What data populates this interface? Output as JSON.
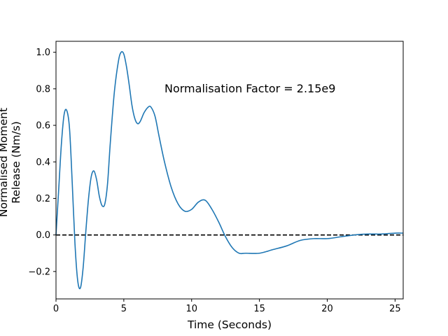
{
  "chart_data": {
    "type": "line",
    "title": "",
    "xlabel": "Time (Seconds)",
    "ylabel": "Normalised Moment Release (Nm/s)",
    "ylabel_lines": [
      "Normalised Moment",
      "Release (Nm/s)"
    ],
    "xlim": [
      0,
      25.6
    ],
    "ylim": [
      -0.35,
      1.06
    ],
    "xticks": [
      0,
      5,
      10,
      15,
      20,
      25
    ],
    "xtick_labels": [
      "0",
      "5",
      "10",
      "15",
      "20",
      "25"
    ],
    "yticks": [
      -0.2,
      0.0,
      0.2,
      0.4,
      0.6,
      0.8,
      1.0
    ],
    "ytick_labels": [
      "−0.2",
      "0.0",
      "0.2",
      "0.4",
      "0.6",
      "0.8",
      "1.0"
    ],
    "grid": false,
    "legend": "none",
    "annotation": {
      "text": "Normalisation Factor = 2.15e9",
      "x": 8.0,
      "y": 0.8
    },
    "reference_line": {
      "y": 0.0,
      "style": "dashed",
      "color": "#000000"
    },
    "series": [
      {
        "color": "#1f77b4",
        "x": [
          0,
          0.2,
          0.4,
          0.6,
          0.8,
          1.0,
          1.2,
          1.4,
          1.6,
          1.8,
          2.0,
          2.2,
          2.4,
          2.6,
          2.8,
          3.0,
          3.2,
          3.4,
          3.6,
          3.8,
          4.0,
          4.3,
          4.6,
          4.8,
          5.0,
          5.2,
          5.4,
          5.6,
          5.8,
          6.0,
          6.2,
          6.5,
          6.8,
          7.0,
          7.3,
          7.6,
          8.0,
          8.5,
          9.0,
          9.5,
          10.0,
          10.5,
          11.0,
          11.5,
          12.0,
          12.5,
          13.0,
          13.5,
          14.0,
          15.0,
          16.0,
          17.0,
          18.0,
          19.0,
          20.0,
          21.0,
          22.0,
          23.0,
          24.0,
          25.0,
          25.6
        ],
        "y": [
          0.0,
          0.25,
          0.5,
          0.66,
          0.68,
          0.58,
          0.28,
          -0.05,
          -0.25,
          -0.29,
          -0.18,
          0.02,
          0.2,
          0.32,
          0.35,
          0.3,
          0.21,
          0.16,
          0.17,
          0.28,
          0.5,
          0.78,
          0.95,
          1.0,
          0.99,
          0.92,
          0.82,
          0.71,
          0.64,
          0.61,
          0.62,
          0.67,
          0.7,
          0.7,
          0.65,
          0.54,
          0.4,
          0.26,
          0.17,
          0.13,
          0.14,
          0.18,
          0.19,
          0.14,
          0.07,
          -0.01,
          -0.07,
          -0.1,
          -0.1,
          -0.1,
          -0.08,
          -0.06,
          -0.03,
          -0.02,
          -0.02,
          -0.01,
          0.0,
          0.005,
          0.005,
          0.01,
          0.01
        ]
      }
    ]
  }
}
